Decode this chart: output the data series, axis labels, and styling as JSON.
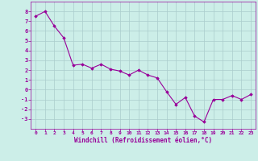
{
  "x": [
    0,
    1,
    2,
    3,
    4,
    5,
    6,
    7,
    8,
    9,
    10,
    11,
    12,
    13,
    14,
    15,
    16,
    17,
    18,
    19,
    20,
    21,
    22,
    23
  ],
  "y": [
    7.5,
    8.0,
    6.5,
    5.3,
    2.5,
    2.6,
    2.2,
    2.6,
    2.1,
    1.9,
    1.5,
    2.0,
    1.5,
    1.2,
    -0.2,
    -1.5,
    -0.8,
    -2.7,
    -3.3,
    -1.0,
    -1.0,
    -0.6,
    -1.0,
    -0.5
  ],
  "line_color": "#990099",
  "marker_color": "#990099",
  "bg_color": "#cceee8",
  "grid_color": "#aacccc",
  "axis_color": "#990099",
  "xlabel": "Windchill (Refroidissement éolien,°C)",
  "xlim": [
    -0.5,
    23.5
  ],
  "ylim": [
    -4,
    9
  ],
  "yticks": [
    -3,
    -2,
    -1,
    0,
    1,
    2,
    3,
    4,
    5,
    6,
    7,
    8
  ],
  "xticks": [
    0,
    1,
    2,
    3,
    4,
    5,
    6,
    7,
    8,
    9,
    10,
    11,
    12,
    13,
    14,
    15,
    16,
    17,
    18,
    19,
    20,
    21,
    22,
    23
  ]
}
